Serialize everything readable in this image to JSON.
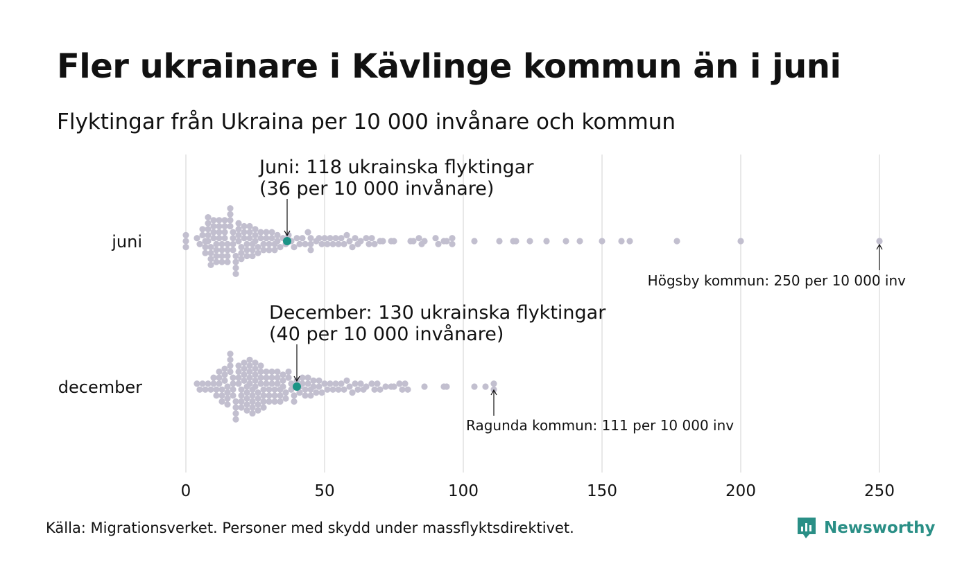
{
  "header": {
    "title": "Fler ukrainare i Kävlinge kommun än i juni",
    "subtitle": "Flyktingar från Ukraina per 10 000 invånare och kommun"
  },
  "footer": {
    "source": "Källa: Migrationsverket. Personer med skydd under massflyktsdirektivet.",
    "brand": "Newsworthy"
  },
  "colors": {
    "dot": "#c2bfcf",
    "highlight": "#1b9486",
    "grid": "#d0d0d0",
    "text": "#111111",
    "brand": "#2a8f86"
  },
  "chart_data": {
    "type": "scatter",
    "variant": "beeswarm",
    "title": "",
    "xlabel": "",
    "ylabel": "",
    "xlim": [
      0,
      260
    ],
    "x_ticks": [
      0,
      50,
      100,
      150,
      200,
      250
    ],
    "grid": true,
    "categories": [
      "juni",
      "december"
    ],
    "series": [
      {
        "name": "juni",
        "values": [
          0,
          0,
          0,
          4,
          5,
          6,
          6,
          7,
          7,
          7,
          8,
          8,
          8,
          8,
          8,
          9,
          9,
          9,
          9,
          10,
          10,
          10,
          10,
          11,
          11,
          11,
          11,
          12,
          12,
          12,
          12,
          13,
          13,
          13,
          13,
          14,
          14,
          14,
          14,
          15,
          15,
          15,
          15,
          16,
          16,
          16,
          16,
          17,
          17,
          17,
          17,
          18,
          18,
          18,
          18,
          19,
          19,
          19,
          19,
          20,
          20,
          20,
          21,
          21,
          21,
          22,
          22,
          22,
          23,
          23,
          23,
          24,
          24,
          24,
          25,
          25,
          25,
          26,
          26,
          27,
          27,
          28,
          28,
          29,
          29,
          30,
          30,
          31,
          31,
          32,
          32,
          33,
          33,
          34,
          35,
          36,
          37,
          38,
          39,
          40,
          41,
          42,
          43,
          44,
          45,
          45,
          45,
          47,
          48,
          49,
          50,
          51,
          52,
          53,
          54,
          55,
          56,
          57,
          58,
          59,
          60,
          61,
          62,
          63,
          65,
          66,
          67,
          68,
          70,
          71,
          74,
          75,
          81,
          82,
          84,
          85,
          86,
          90,
          91,
          93,
          94,
          96,
          96,
          104,
          113,
          118,
          119,
          124,
          130,
          137,
          142,
          150,
          157,
          160,
          177,
          200,
          250
        ],
        "highlight": {
          "value": 36.5,
          "label_line1": "Juni: 118 ukrainska flyktingar",
          "label_line2": "(36 per 10 000 invånare)"
        },
        "max_annotation": {
          "value": 250,
          "label": "Högsby kommun: 250 per 10 000 inv"
        }
      },
      {
        "name": "december",
        "values": [
          4,
          5,
          6,
          7,
          8,
          9,
          10,
          10,
          11,
          11,
          12,
          12,
          12,
          13,
          13,
          13,
          14,
          14,
          14,
          15,
          15,
          15,
          15,
          16,
          16,
          16,
          16,
          17,
          17,
          17,
          17,
          18,
          18,
          18,
          18,
          19,
          19,
          19,
          19,
          20,
          20,
          20,
          20,
          21,
          21,
          21,
          21,
          22,
          22,
          22,
          22,
          22,
          23,
          23,
          23,
          23,
          23,
          24,
          24,
          24,
          24,
          24,
          25,
          25,
          25,
          25,
          25,
          26,
          26,
          26,
          26,
          27,
          27,
          27,
          27,
          28,
          28,
          28,
          28,
          29,
          29,
          29,
          30,
          30,
          30,
          31,
          31,
          31,
          32,
          32,
          32,
          33,
          33,
          33,
          34,
          34,
          34,
          35,
          35,
          35,
          36,
          36,
          37,
          37,
          38,
          38,
          39,
          39,
          40,
          41,
          41,
          42,
          42,
          43,
          43,
          44,
          44,
          45,
          45,
          46,
          46,
          47,
          48,
          48,
          49,
          50,
          51,
          52,
          53,
          54,
          55,
          56,
          57,
          58,
          59,
          60,
          61,
          62,
          63,
          64,
          65,
          67,
          68,
          69,
          70,
          72,
          74,
          75,
          77,
          78,
          79,
          80,
          86,
          93,
          94,
          104,
          108,
          111,
          111
        ],
        "highlight": {
          "value": 40,
          "label_line1": "December: 130 ukrainska flyktingar",
          "label_line2": "(40 per 10 000 invånare)"
        },
        "max_annotation": {
          "value": 111,
          "label": "Ragunda kommun: 111 per 10 000 inv"
        }
      }
    ]
  }
}
